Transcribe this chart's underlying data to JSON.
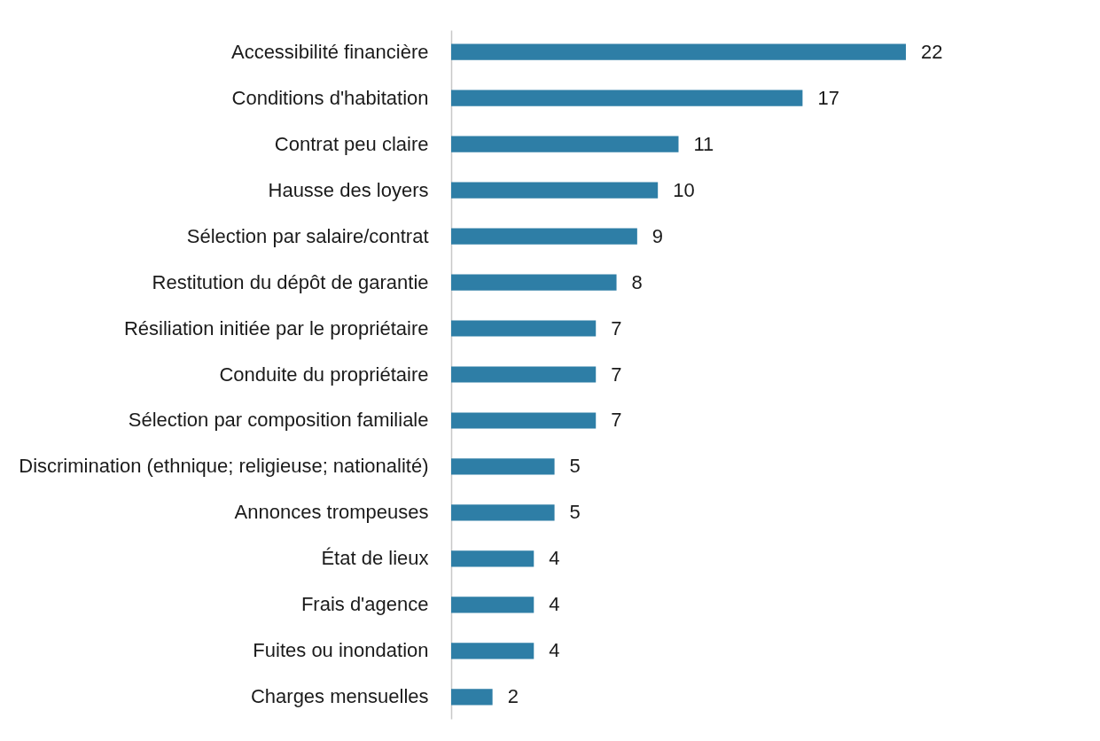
{
  "chart_data": {
    "type": "bar",
    "orientation": "horizontal",
    "data_labels": true,
    "categories": [
      "Accessibilité financière",
      "Conditions d'habitation",
      "Contrat peu claire",
      "Hausse des loyers",
      "Sélection par salaire/contrat",
      "Restitution du dépôt de garantie ",
      "Résiliation initiée par le propriétaire",
      "Conduite du propriétaire",
      "Sélection par composition familiale",
      "Discrimination (ethnique; religieuse; nationalité)",
      "Annonces trompeuses ",
      "État de lieux",
      "Frais d'agence",
      "Fuites ou inondation",
      "Charges mensuelles"
    ],
    "values": [
      22,
      17,
      11,
      10,
      9,
      8,
      7,
      7,
      7,
      5,
      5,
      4,
      4,
      4,
      2
    ],
    "color": "#2e7ea6"
  }
}
